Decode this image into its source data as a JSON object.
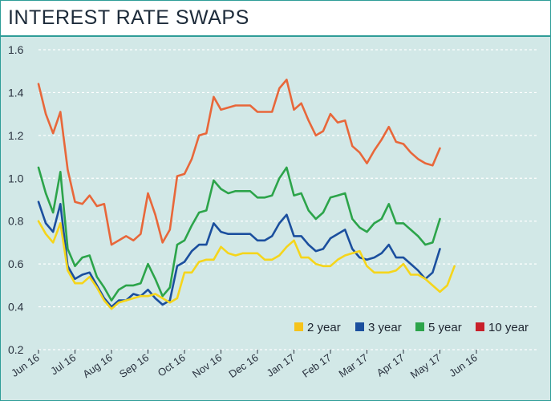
{
  "header": {
    "title": "INTEREST RATE SWAPS"
  },
  "chart_data": {
    "type": "line",
    "title": "INTEREST RATE SWAPS",
    "xlabel": "",
    "ylabel": "",
    "ylim": [
      0.2,
      1.6
    ],
    "yticks": [
      "0.2",
      "0.4",
      "0.6",
      "0.8",
      "1.0",
      "1.2",
      "1.4",
      "1.6"
    ],
    "grid": "horizontal dashed",
    "legend_position": "bottom-right",
    "x_tick_labels": [
      "Jun 16",
      "Jul 16",
      "Aug 16",
      "Sep 16",
      "Oct 16",
      "Nov 16",
      "Dec 16",
      "Jan 17",
      "Feb 17",
      "Mar 17",
      "Apr 17",
      "May 17",
      "Jun 16"
    ],
    "x_tick_positions": [
      0,
      5,
      10,
      15,
      20,
      25,
      30,
      35,
      40,
      45,
      50,
      55,
      60
    ],
    "x_max": 65,
    "series": [
      {
        "name": "2 year",
        "color": "#f5d51b",
        "values": [
          0.8,
          0.74,
          0.7,
          0.79,
          0.57,
          0.51,
          0.51,
          0.54,
          0.49,
          0.43,
          0.39,
          0.42,
          0.43,
          0.44,
          0.45,
          0.45,
          0.46,
          0.44,
          0.42,
          0.44,
          0.56,
          0.56,
          0.61,
          0.62,
          0.62,
          0.68,
          0.65,
          0.64,
          0.65,
          0.65,
          0.65,
          0.62,
          0.62,
          0.64,
          0.68,
          0.71,
          0.63,
          0.63,
          0.6,
          0.59,
          0.59,
          0.62,
          0.64,
          0.65,
          0.66,
          0.59,
          0.56,
          0.56,
          0.56,
          0.57,
          0.6,
          0.55,
          0.55,
          0.53,
          0.5,
          0.47,
          0.5,
          0.59
        ]
      },
      {
        "name": "3 year",
        "color": "#1b4f9e",
        "values": [
          0.89,
          0.79,
          0.75,
          0.88,
          0.59,
          0.53,
          0.55,
          0.56,
          0.5,
          0.44,
          0.4,
          0.43,
          0.43,
          0.46,
          0.45,
          0.48,
          0.44,
          0.41,
          0.43,
          0.59,
          0.61,
          0.66,
          0.69,
          0.69,
          0.79,
          0.75,
          0.74,
          0.74,
          0.74,
          0.74,
          0.71,
          0.71,
          0.73,
          0.79,
          0.83,
          0.73,
          0.73,
          0.69,
          0.66,
          0.67,
          0.72,
          0.74,
          0.76,
          0.67,
          0.63,
          0.62,
          0.63,
          0.65,
          0.69,
          0.63,
          0.63,
          0.6,
          0.57,
          0.53,
          0.56,
          0.67
        ]
      },
      {
        "name": "5 year",
        "color": "#2ca44a",
        "values": [
          1.05,
          0.93,
          0.84,
          1.03,
          0.67,
          0.59,
          0.63,
          0.64,
          0.54,
          0.49,
          0.43,
          0.48,
          0.5,
          0.5,
          0.51,
          0.6,
          0.53,
          0.45,
          0.49,
          0.69,
          0.71,
          0.78,
          0.84,
          0.85,
          0.99,
          0.95,
          0.93,
          0.94,
          0.94,
          0.94,
          0.91,
          0.91,
          0.92,
          1.0,
          1.05,
          0.92,
          0.93,
          0.85,
          0.81,
          0.84,
          0.91,
          0.92,
          0.93,
          0.81,
          0.77,
          0.75,
          0.79,
          0.81,
          0.88,
          0.79,
          0.79,
          0.76,
          0.73,
          0.69,
          0.7,
          0.81
        ]
      },
      {
        "name": "10 year",
        "color": "#e8673a",
        "values": [
          1.44,
          1.3,
          1.21,
          1.31,
          1.04,
          0.89,
          0.88,
          0.92,
          0.87,
          0.88,
          0.69,
          0.71,
          0.73,
          0.71,
          0.74,
          0.93,
          0.83,
          0.7,
          0.76,
          1.01,
          1.02,
          1.09,
          1.2,
          1.21,
          1.38,
          1.32,
          1.33,
          1.34,
          1.34,
          1.34,
          1.31,
          1.31,
          1.31,
          1.42,
          1.46,
          1.32,
          1.35,
          1.27,
          1.2,
          1.22,
          1.3,
          1.26,
          1.27,
          1.15,
          1.12,
          1.07,
          1.13,
          1.18,
          1.24,
          1.17,
          1.16,
          1.12,
          1.09,
          1.07,
          1.06,
          1.14
        ]
      }
    ],
    "legend": [
      {
        "label": "2 year",
        "color": "#f5c31b"
      },
      {
        "label": "3 year",
        "color": "#1b4f9e"
      },
      {
        "label": "5 year",
        "color": "#2ca44a"
      },
      {
        "label": "10 year",
        "color": "#c8202a"
      }
    ]
  }
}
